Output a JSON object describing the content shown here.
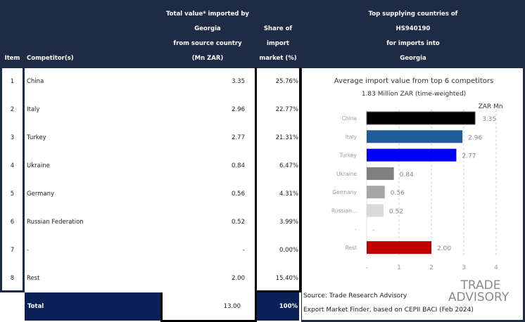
{
  "header": {
    "item": "Item",
    "competitor": "Competitor(s)",
    "value_lines": [
      "Total value* imported by",
      "Georgia",
      "from source country",
      "(Mn ZAR)"
    ],
    "share_lines": [
      "Share of",
      "import",
      "market (%)"
    ],
    "chart_lines": [
      "Top supplying countries of",
      "HS940190",
      "for imports into",
      "Georgia"
    ]
  },
  "rows": [
    {
      "item": "1",
      "competitor": "China",
      "value": "3.35",
      "share": "25.76%"
    },
    {
      "item": "2",
      "competitor": "Italy",
      "value": "2.96",
      "share": "22.77%"
    },
    {
      "item": "3",
      "competitor": "Turkey",
      "value": "2.77",
      "share": "21.31%"
    },
    {
      "item": "4",
      "competitor": "Ukraine",
      "value": "0.84",
      "share": "6.47%"
    },
    {
      "item": "5",
      "competitor": "Germany",
      "value": "0.56",
      "share": "4.31%"
    },
    {
      "item": "6",
      "competitor": "Russian Federation",
      "value": "0.52",
      "share": "3.99%"
    },
    {
      "item": "7",
      "competitor": "-",
      "value": "-",
      "share": "0.00%"
    },
    {
      "item": "8",
      "competitor": "Rest",
      "value": "2.00",
      "share": "15.40%"
    }
  ],
  "total": {
    "label": "Total",
    "value": "13.00",
    "share": "100%"
  },
  "chart_data": {
    "type": "bar",
    "title": "Average import value from top 6 competitors",
    "subtitle": "1.83 Million ZAR (time-weighted)",
    "unit_label": "ZAR Mn",
    "categories": [
      "China",
      "Italy",
      "Turkey",
      "Ukraine",
      "Germany",
      "Russian...",
      "-",
      "Rest"
    ],
    "values": [
      3.35,
      2.96,
      2.77,
      0.84,
      0.56,
      0.52,
      0,
      2.0
    ],
    "value_labels": [
      "3.35",
      "2.96",
      "2.77",
      "0.84",
      "0.56",
      "0.52",
      "-",
      "2.00"
    ],
    "colors": [
      "#000000",
      "#1f5c99",
      "#0000ff",
      "#808080",
      "#a6a6a6",
      "#d9d9d9",
      "#ffffff",
      "#c00000"
    ],
    "xticks": [
      "-",
      "1",
      "2",
      "3",
      "4"
    ],
    "xlim": [
      0,
      4
    ],
    "grid": true
  },
  "source": [
    "Source: Trade Research Advisory",
    "Export Market Finder, based on CEPII BACI (Feb 2024)"
  ],
  "logo": {
    "line1": "TRADE",
    "line2": "ADVISORY"
  },
  "colors": {
    "header": "#1f2a44",
    "total": "#0a2158",
    "accent": "#f0a030"
  }
}
